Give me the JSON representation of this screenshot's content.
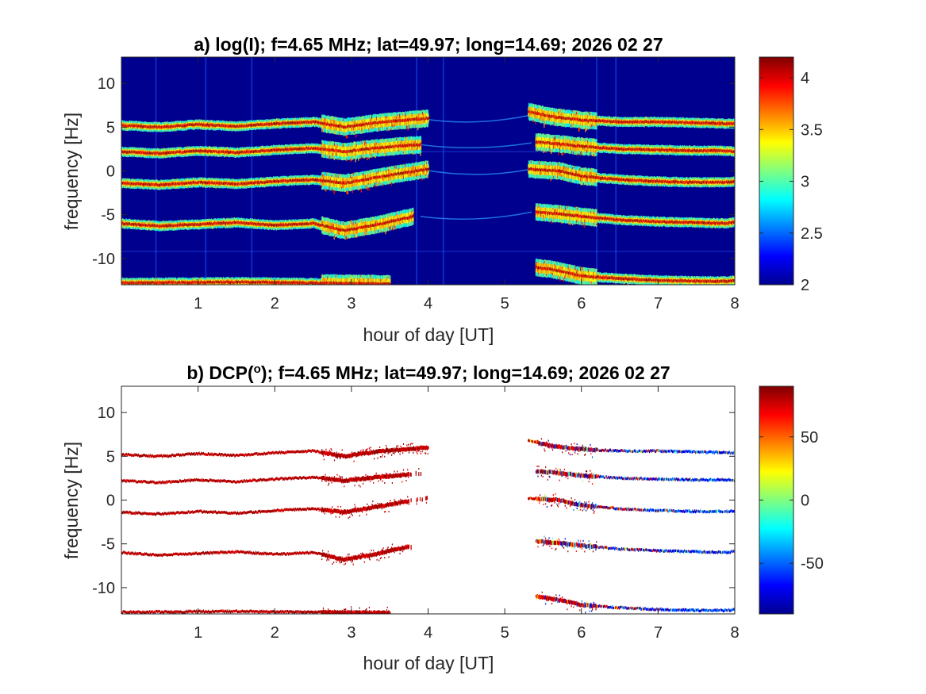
{
  "chart_data": [
    {
      "type": "heatmap",
      "title": "a) log(I); f=4.65 MHz;  lat=49.97; long=14.69; 2026 02 27",
      "xlabel": "hour of day [UT]",
      "ylabel": "frequency [Hz]",
      "xlim": [
        0,
        8
      ],
      "ylim": [
        -13,
        13
      ],
      "xticks": [
        "1",
        "2",
        "3",
        "4",
        "5",
        "6",
        "7",
        "8"
      ],
      "yticks": [
        "10",
        "5",
        "0",
        "-5",
        "-10"
      ],
      "colorbar": {
        "range": [
          2,
          4.2
        ],
        "ticks": [
          "4",
          "3.5",
          "3",
          "2.5",
          "2"
        ],
        "colormap": "jet"
      },
      "background_value": 2,
      "traces": [
        {
          "f": [
            5.2,
            5.0,
            5.3,
            5.1,
            5.4,
            5.6,
            5.0,
            5.5,
            5.8,
            6.0
          ],
          "h": [
            0,
            0.5,
            1.0,
            1.5,
            2.0,
            2.5,
            2.9,
            3.3,
            3.7,
            4.0
          ]
        },
        {
          "f": [
            2.2,
            2.0,
            2.3,
            2.1,
            2.4,
            2.6,
            2.2,
            2.6,
            2.9,
            3.0
          ],
          "h": [
            0,
            0.5,
            1.0,
            1.5,
            2.0,
            2.5,
            2.9,
            3.3,
            3.7,
            3.9
          ]
        },
        {
          "f": [
            -1.4,
            -1.6,
            -1.3,
            -1.5,
            -1.2,
            -1.0,
            -1.4,
            -0.8,
            -0.2,
            0.2
          ],
          "h": [
            0,
            0.5,
            1.0,
            1.5,
            2.0,
            2.5,
            2.9,
            3.3,
            3.7,
            4.0
          ]
        },
        {
          "f": [
            -6.0,
            -6.3,
            -6.1,
            -5.9,
            -6.2,
            -6.0,
            -6.8,
            -6.2,
            -5.6,
            -5.2
          ],
          "h": [
            0,
            0.5,
            1.0,
            1.5,
            2.0,
            2.5,
            2.9,
            3.3,
            3.6,
            3.8
          ]
        },
        {
          "f": [
            6.8,
            6.2,
            5.8,
            5.6,
            5.6,
            5.5,
            5.4,
            5.4
          ],
          "h": [
            5.3,
            5.6,
            6.0,
            6.5,
            7.0,
            7.5,
            7.9,
            8.0
          ]
        },
        {
          "f": [
            3.3,
            3.1,
            2.8,
            2.5,
            2.4,
            2.3,
            2.3,
            2.2
          ],
          "h": [
            5.4,
            5.7,
            6.0,
            6.5,
            7.0,
            7.5,
            7.9,
            8.0
          ]
        },
        {
          "f": [
            0.2,
            0.0,
            -0.6,
            -1.0,
            -1.2,
            -1.3,
            -1.3,
            -1.2
          ],
          "h": [
            5.3,
            5.7,
            6.0,
            6.5,
            7.0,
            7.5,
            7.9,
            8.0
          ]
        },
        {
          "f": [
            -4.7,
            -4.9,
            -5.2,
            -5.6,
            -5.8,
            -5.9,
            -6.0,
            -5.8
          ],
          "h": [
            5.4,
            5.7,
            6.0,
            6.5,
            7.0,
            7.5,
            7.9,
            8.0
          ]
        },
        {
          "f": [
            -11.0,
            -11.4,
            -12.0,
            -12.3,
            -12.5,
            -12.6,
            -12.6,
            -12.5
          ],
          "h": [
            5.4,
            5.7,
            6.0,
            6.5,
            7.0,
            7.5,
            7.9,
            8.0
          ]
        },
        {
          "f": [
            -12.8,
            -12.7,
            -12.8,
            -12.9
          ],
          "h": [
            0,
            1.5,
            2.5,
            3.5
          ]
        }
      ]
    },
    {
      "type": "heatmap",
      "title": "b) DCP(",
      "title_superscript": "o",
      "title_suffix": "); f=4.65 MHz;  lat=49.97; long=14.69; 2026 02 27",
      "xlabel": "hour of day [UT]",
      "ylabel": "frequency [Hz]",
      "xlim": [
        0,
        8
      ],
      "ylim": [
        -13,
        13
      ],
      "xticks": [
        "1",
        "2",
        "3",
        "4",
        "5",
        "6",
        "7",
        "8"
      ],
      "yticks": [
        "10",
        "5",
        "0",
        "-5",
        "-10"
      ],
      "colorbar": {
        "range": [
          -90,
          90
        ],
        "ticks": [
          "50",
          "0",
          "-50"
        ],
        "colormap": "jet"
      },
      "background": "white (masked)",
      "notes": "Left traces (0-4 UT) strongly positive DCP (red); right traces (5.4-8 UT) red near 5.5 UT turning negative (blue) later."
    }
  ],
  "colors": {
    "low": "#00008f",
    "mid": "#00ffff",
    "high": "#ff0000",
    "max": "#800000"
  }
}
